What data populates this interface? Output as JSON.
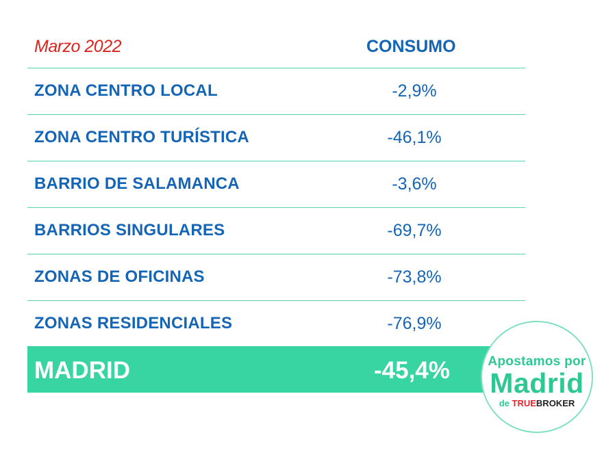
{
  "header": {
    "date": "Marzo 2022",
    "column": "CONSUMO"
  },
  "rows": [
    {
      "zone": "ZONA CENTRO LOCAL",
      "value": "-2,9%"
    },
    {
      "zone": "ZONA CENTRO TURÍSTICA",
      "value": "-46,1%"
    },
    {
      "zone": "BARRIO DE SALAMANCA",
      "value": "-3,6%"
    },
    {
      "zone": "BARRIOS SINGULARES",
      "value": "-69,7%"
    },
    {
      "zone": "ZONAS DE OFICINAS",
      "value": "-73,8%"
    },
    {
      "zone": "ZONAS RESIDENCIALES",
      "value": "-76,9%"
    }
  ],
  "total": {
    "label": "MADRID",
    "value": "-45,4%"
  },
  "logo": {
    "line1": "Apostamos por",
    "line2": "Madrid",
    "de": "de",
    "brand_true": "TRUE",
    "brand_broker": "BROKER"
  },
  "colors": {
    "primary_blue": "#1565b7",
    "accent_red": "#d9241f",
    "accent_green": "#38d4a1"
  }
}
